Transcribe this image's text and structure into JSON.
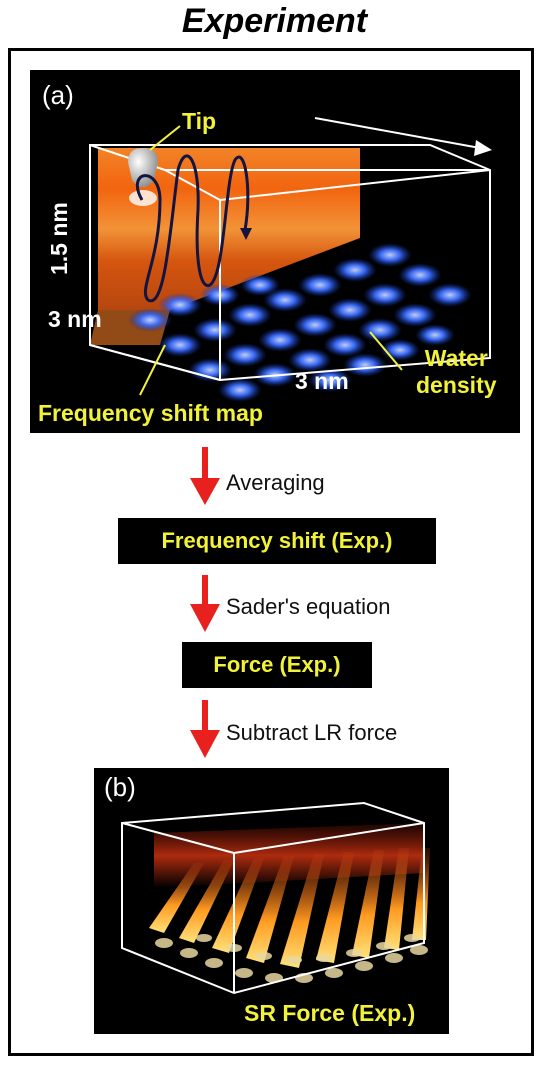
{
  "title": "Experiment",
  "panel_a": {
    "letter": "(a)",
    "tip": "Tip",
    "height_label": "1.5 nm",
    "depth_label": "3 nm",
    "width_label": "3 nm",
    "water_line1": "Water",
    "water_line2": "density",
    "freq_map": "Frequency shift map"
  },
  "steps": [
    {
      "label": "Averaging",
      "box": "Frequency shift (Exp.)"
    },
    {
      "label": "Sader's equation",
      "box": "Force (Exp.)"
    },
    {
      "label": "Subtract LR force"
    }
  ],
  "panel_b": {
    "letter": "(b)",
    "caption": "SR Force (Exp.)"
  },
  "colors": {
    "arrow": "#e8211f",
    "label_yellow": "#f2f23a",
    "water_blue": "#3a6cff",
    "map_orange": "#ff7a1a"
  }
}
